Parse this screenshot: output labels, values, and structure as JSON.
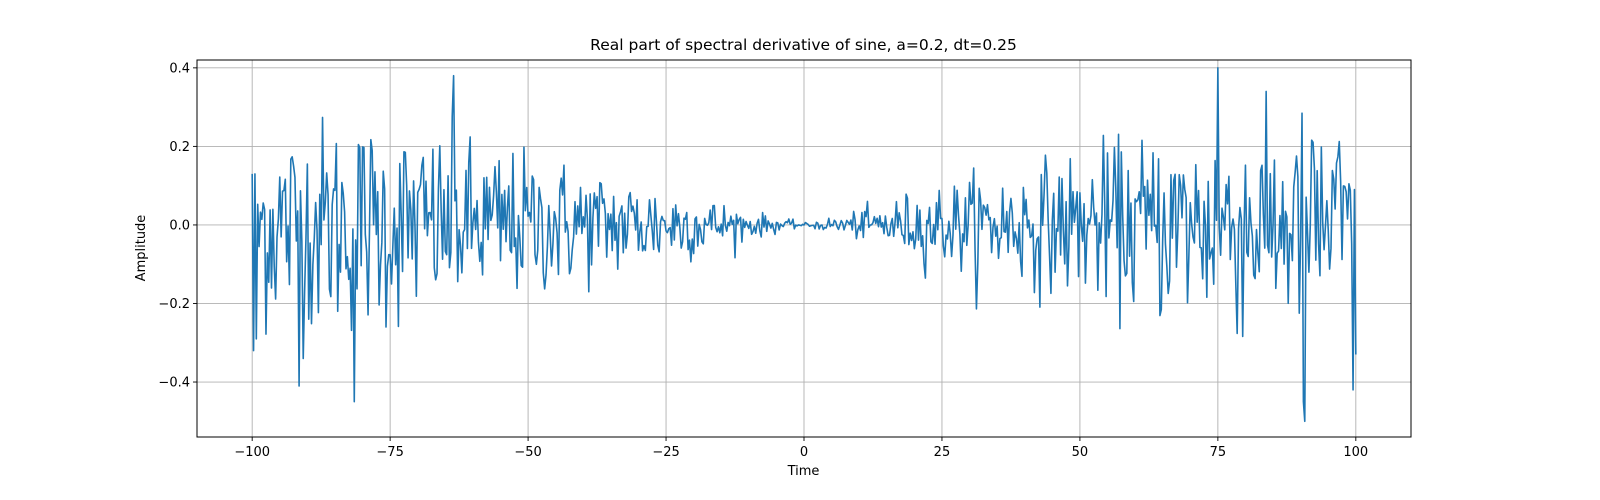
{
  "chart_data": {
    "type": "line",
    "title": "Real part of spectral derivative of sine, a=0.2, dt=0.25",
    "xlabel": "Time",
    "ylabel": "Amplitude",
    "xlim": [
      -110,
      110
    ],
    "ylim": [
      -0.54,
      0.42
    ],
    "grid": true,
    "x_range": [
      -100,
      100
    ],
    "x_step": 0.25,
    "sample_count": 801,
    "x_ticks": [
      -100,
      -75,
      -50,
      -25,
      0,
      25,
      50,
      75,
      100
    ],
    "x_tick_labels": [
      "−100",
      "−75",
      "−50",
      "−25",
      "0",
      "25",
      "50",
      "75",
      "100"
    ],
    "y_ticks": [
      -0.4,
      -0.2,
      0.0,
      0.2,
      0.4
    ],
    "y_tick_labels": [
      "−0.4",
      "−0.2",
      "0.0",
      "0.2",
      "0.4"
    ],
    "series": [
      {
        "color": "#1f77b4",
        "description_points": {
          "start": [
            [
              -100,
              0.13
            ],
            [
              -99.75,
              -0.32
            ],
            [
              -99.5,
              0.13
            ],
            [
              -99.25,
              -0.29
            ]
          ],
          "envelope_amplitude_by_x": [
            [
              -100,
              0.3
            ],
            [
              -80,
              0.3
            ],
            [
              -50,
              0.2
            ],
            [
              -25,
              0.12
            ],
            [
              -10,
              0.04
            ],
            [
              0,
              0.005
            ],
            [
              10,
              0.04
            ],
            [
              25,
              0.12
            ],
            [
              50,
              0.2
            ],
            [
              75,
              0.3
            ],
            [
              100,
              0.3
            ]
          ],
          "extremes": [
            [
              -81.5,
              -0.45
            ],
            [
              -91.5,
              -0.41
            ],
            [
              -63.5,
              0.38
            ],
            [
              75,
              0.4
            ],
            [
              90.75,
              -0.5
            ],
            [
              90.5,
              -0.45
            ],
            [
              99.5,
              -0.42
            ]
          ],
          "end": [
            [
              99.75,
              0.09
            ],
            [
              100,
              -0.33
            ]
          ]
        }
      }
    ]
  }
}
